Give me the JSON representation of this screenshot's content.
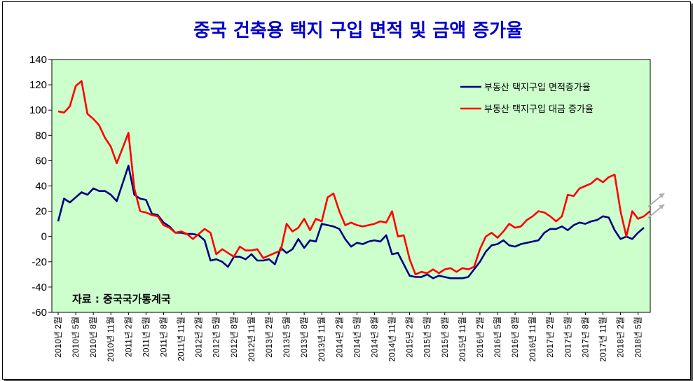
{
  "chart_data": {
    "type": "line",
    "title": "중국 건축용 택지 구입 면적 및 금액 증가율",
    "source_note": "자료 : 중국국가통계국",
    "ylim": [
      -60,
      140
    ],
    "yticks": [
      140,
      120,
      100,
      80,
      60,
      40,
      20,
      0,
      -20,
      -40,
      -60
    ],
    "grid": false,
    "legend_position": "top-right",
    "plot_background": "#ccffcc",
    "x_tick_labels": [
      "2010년 2월",
      "2010년 5월",
      "2010년 8월",
      "2010년 11월",
      "2011년 2월",
      "2011년 5월",
      "2011년 8월",
      "2011년 11월",
      "2012년 2월",
      "2012년 5월",
      "2012년 8월",
      "2012년 11월",
      "2013년 2월",
      "2013년 5월",
      "2013년 8월",
      "2013년 11월",
      "2014년 2월",
      "2014년 5월",
      "2014년 8월",
      "2014년 11월",
      "2015년 2월",
      "2015년 5월",
      "2015년 8월",
      "2015년 11월",
      "2016년 2월",
      "2016년 5월",
      "2016년 8월",
      "2016년 11월",
      "2017년 2월",
      "2017년 5월",
      "2017년 8월",
      "2017년 11월",
      "2018년 2월",
      "2018년 5월"
    ],
    "series": [
      {
        "name": "부동산 택지구입 면적증가율",
        "color": "#000080",
        "values": [
          12,
          30,
          27,
          31,
          35,
          33,
          38,
          36,
          36,
          33,
          28,
          42,
          56,
          33,
          30,
          29,
          18,
          17,
          11,
          8,
          3,
          3,
          2,
          2,
          1,
          -3,
          -19,
          -18,
          -20,
          -24,
          -16,
          -16,
          -18,
          -14,
          -19,
          -19,
          -18,
          -22,
          -9,
          -13,
          -10,
          -2,
          -9,
          -3,
          -4,
          10,
          9,
          8,
          6,
          -2,
          -8,
          -5,
          -6,
          -4,
          -3,
          -4,
          1,
          -14,
          -13,
          -22,
          -31,
          -32,
          -32,
          -30,
          -33,
          -31,
          -32,
          -33,
          -33,
          -33,
          -32,
          -26,
          -20,
          -12,
          -7,
          -6,
          -3,
          -7,
          -8,
          -6,
          -5,
          -4,
          -3,
          3,
          6,
          6,
          8,
          5,
          9,
          11,
          10,
          12,
          13,
          16,
          15,
          5,
          -2,
          0,
          -2,
          3,
          7
        ]
      },
      {
        "name": "부동산 택지구입 대금 증가율",
        "color": "#ff0000",
        "values": [
          99,
          98,
          103,
          119,
          123,
          97,
          93,
          88,
          78,
          71,
          58,
          70,
          82,
          38,
          20,
          19,
          17,
          16,
          9,
          7,
          3,
          4,
          2,
          -2,
          2,
          6,
          3,
          -14,
          -10,
          -13,
          -16,
          -8,
          -11,
          -11,
          -10,
          -17,
          -15,
          -13,
          -11,
          10,
          4,
          7,
          14,
          5,
          14,
          12,
          31,
          34,
          20,
          9,
          11,
          9,
          8,
          9,
          10,
          12,
          11,
          20,
          0,
          1,
          -18,
          -30,
          -28,
          -29,
          -26,
          -29,
          -26,
          -25,
          -28,
          -25,
          -26,
          -24,
          -10,
          0,
          3,
          -1,
          4,
          10,
          7,
          8,
          13,
          16,
          20,
          19,
          16,
          12,
          16,
          33,
          32,
          38,
          40,
          42,
          46,
          43,
          47,
          49,
          20,
          0,
          20,
          14,
          16,
          20
        ]
      }
    ]
  }
}
